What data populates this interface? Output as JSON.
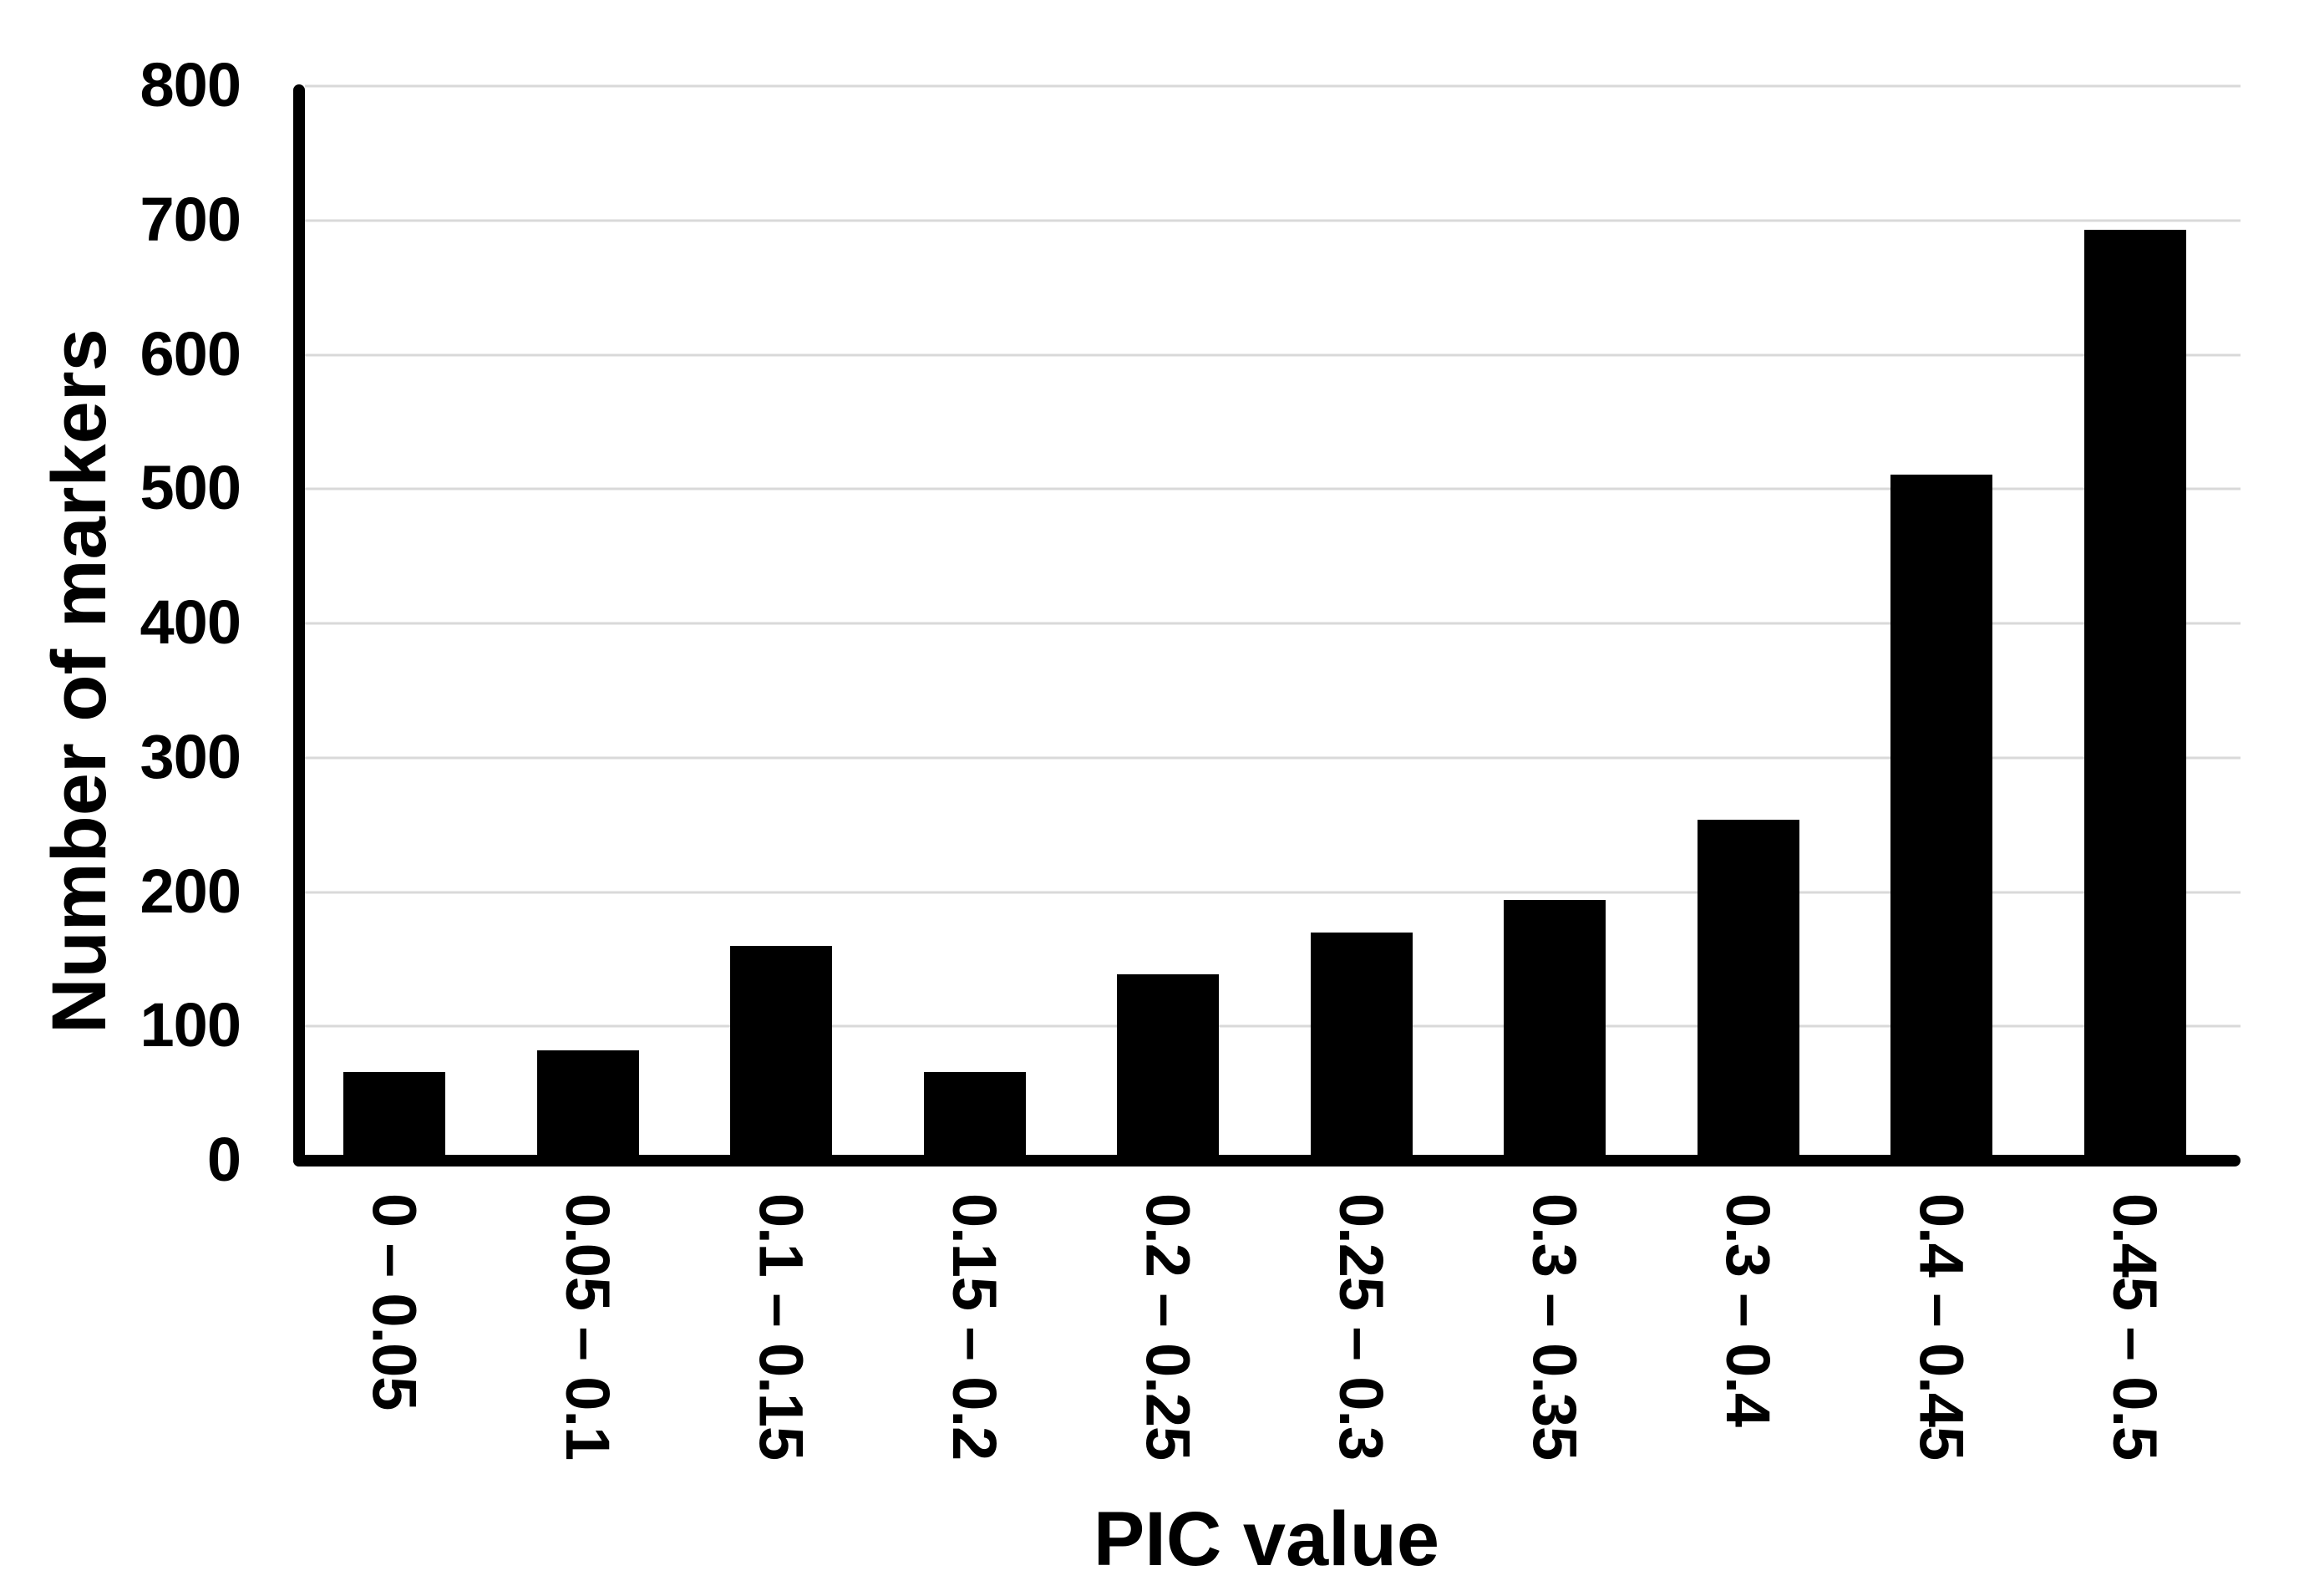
{
  "chart_data": {
    "type": "bar",
    "title": "",
    "xlabel": "PIC value",
    "ylabel": "Number of markers",
    "categories": [
      "0 – 0.05",
      "0.05 – 0.1",
      "0.1 – 0.15",
      "0.15 – 0.2",
      "0.2 – 0.25",
      "0.25 – 0.3",
      "0.3 – 0.35",
      "0.3 – 0.4",
      "0.4 – 0.45",
      "0.45 – 0.5"
    ],
    "values": [
      66,
      82,
      160,
      66,
      139,
      170,
      194,
      254,
      511,
      693
    ],
    "ylim": [
      0,
      800
    ],
    "yticks": [
      0,
      100,
      200,
      300,
      400,
      500,
      600,
      700,
      800
    ],
    "grid": true,
    "legend_position": "none",
    "x_tick_rotation_deg": 90,
    "bar_color": "#000000",
    "gridline_color": "#d9d9d9",
    "background_color": "#ffffff",
    "text_color": "#000000"
  }
}
